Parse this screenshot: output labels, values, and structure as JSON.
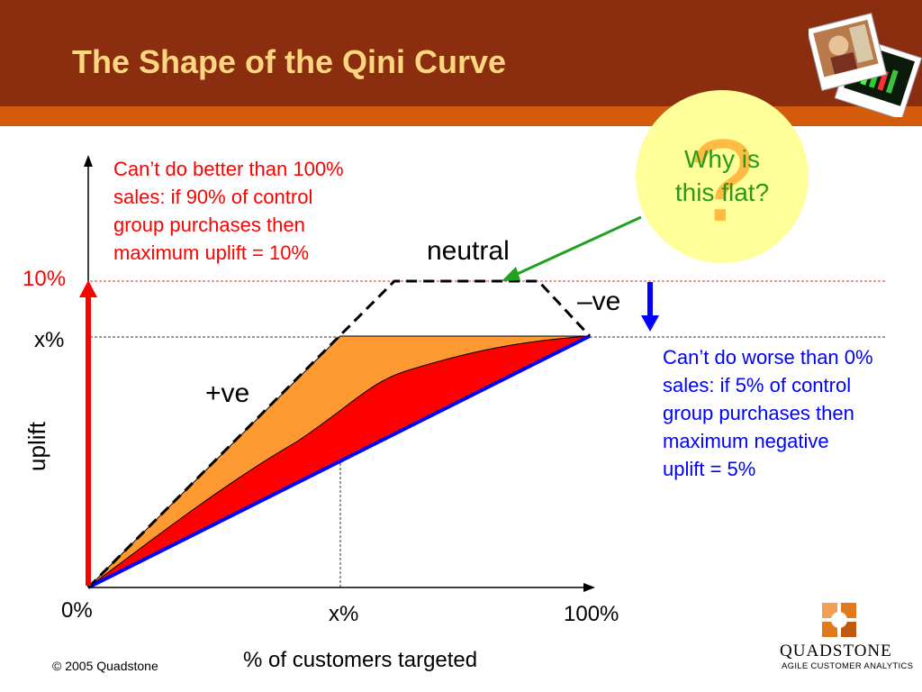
{
  "slide": {
    "title": "The Shape of the Qini Curve",
    "copyright": "© 2005 Quadstone"
  },
  "logo": {
    "name": "QUADSTONE",
    "tagline": "AGILE CUSTOMER ANALYTICS"
  },
  "bubble": {
    "question_mark": "?",
    "text": "Why is\nthis flat?"
  },
  "labels": {
    "neutral": "neutral",
    "negative": "–ve",
    "positive": "+ve",
    "y_ten": "10%",
    "y_x": "x%",
    "x_zero": "0%",
    "x_x": "x%",
    "x_hundred": "100%",
    "x_axis_title": "% of customers targeted",
    "y_axis_title": "uplift"
  },
  "notes": {
    "top": "Can’t do better than 100%\nsales: if 90% of control\ngroup purchases then\nmaximum uplift = 10%",
    "right": "Can’t do worse than 0%\nsales: if 5% of control\ngroup purchases then\nmaximum negative\nuplift = 5%"
  },
  "colors": {
    "header": "#8b2e10",
    "stripe": "#d45a0c",
    "title": "#ffd680",
    "orange_area": "#ff9a33",
    "red_area": "#ff0000",
    "random_line": "#0000ff",
    "bubble_fill": "#ffff99",
    "bubble_text": "#2a9a1a"
  }
}
